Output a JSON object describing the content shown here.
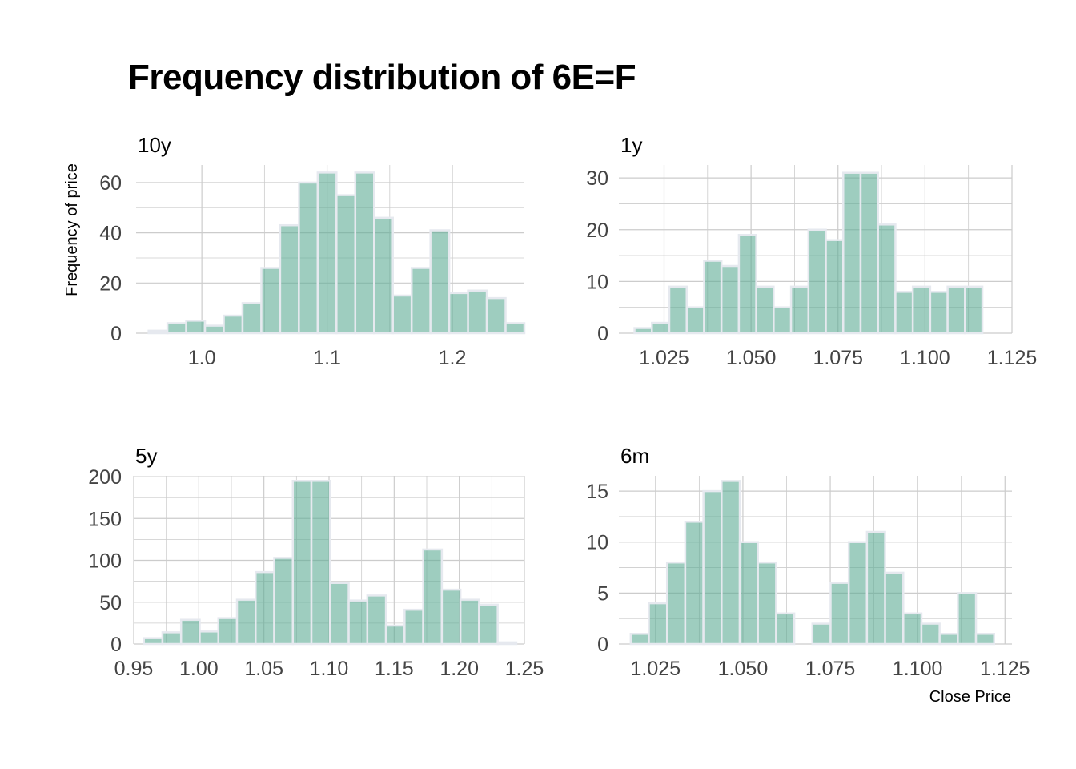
{
  "title": "Frequency distribution of 6E=F",
  "colors": {
    "bar_fill": "#5eab95",
    "bar_stroke": "#e6e9ef",
    "grid": "#cccccc"
  },
  "chart_data": {
    "type": "bar",
    "title": "Frequency distribution of 6E=F",
    "ylabel": "Frequency of price",
    "xlabel": "Close Price",
    "grid": true,
    "facets": [
      {
        "name": "10y",
        "bin_width": 0.015,
        "bin_start": 0.9575,
        "counts": [
          1,
          4,
          5,
          3,
          7,
          12,
          26,
          43,
          60,
          64,
          55,
          64,
          46,
          15,
          26,
          41,
          16,
          17,
          14,
          4
        ],
        "xlim": [
          0.9475,
          1.2575
        ],
        "ylim": [
          0,
          67
        ],
        "xticks": [
          1.0,
          1.1,
          1.2
        ],
        "xtick_labels": [
          "1.0",
          "1.1",
          "1.2"
        ],
        "yticks": [
          0,
          20,
          40,
          60
        ],
        "ytick_labels": [
          "0",
          "20",
          "40",
          "60"
        ]
      },
      {
        "name": "1y",
        "bin_width": 0.005,
        "bin_start": 1.0165,
        "counts": [
          1,
          2,
          9,
          5,
          14,
          13,
          19,
          9,
          5,
          9,
          20,
          18,
          31,
          31,
          21,
          8,
          9,
          8,
          9,
          9
        ],
        "xlim": [
          1.012,
          1.125
        ],
        "ylim": [
          0,
          32.5
        ],
        "xticks": [
          1.025,
          1.05,
          1.075,
          1.1,
          1.125
        ],
        "xtick_labels": [
          "1.025",
          "1.050",
          "1.075",
          "1.100",
          "1.125"
        ],
        "yticks": [
          0,
          10,
          20,
          30
        ],
        "ytick_labels": [
          "0",
          "10",
          "20",
          "30"
        ]
      },
      {
        "name": "5y",
        "bin_width": 0.0143,
        "bin_start": 0.9578,
        "counts": [
          7,
          14,
          29,
          15,
          31,
          53,
          86,
          103,
          195,
          195,
          73,
          52,
          58,
          22,
          41,
          113,
          65,
          53,
          47,
          2
        ],
        "xlim": [
          0.95,
          1.25
        ],
        "ylim": [
          0,
          201
        ],
        "xticks": [
          0.95,
          1.0,
          1.05,
          1.1,
          1.15,
          1.2,
          1.25
        ],
        "xtick_labels": [
          "0.95",
          "1.00",
          "1.05",
          "1.10",
          "1.15",
          "1.20",
          "1.25"
        ],
        "yticks": [
          0,
          50,
          100,
          150,
          200
        ],
        "ytick_labels": [
          "0",
          "50",
          "100",
          "150",
          "200"
        ]
      },
      {
        "name": "6m",
        "bin_width": 0.0052,
        "bin_start": 1.0179,
        "counts": [
          1,
          4,
          8,
          12,
          15,
          16,
          10,
          8,
          3,
          0,
          2,
          6,
          10,
          11,
          7,
          3,
          2,
          1,
          5,
          1
        ],
        "xlim": [
          1.0145,
          1.127
        ],
        "ylim": [
          0,
          16.5
        ],
        "xticks": [
          1.025,
          1.05,
          1.075,
          1.1,
          1.125
        ],
        "xtick_labels": [
          "1.025",
          "1.050",
          "1.075",
          "1.100",
          "1.125"
        ],
        "yticks": [
          0,
          5,
          10,
          15
        ],
        "ytick_labels": [
          "0",
          "5",
          "10",
          "15"
        ]
      }
    ]
  }
}
